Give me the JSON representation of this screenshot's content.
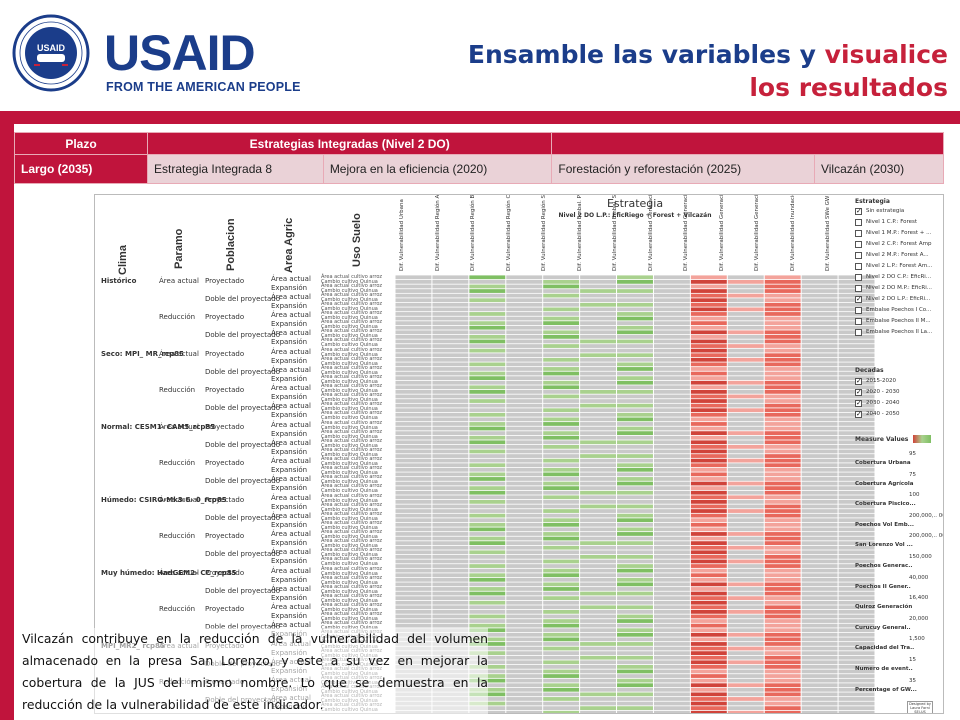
{
  "logo": {
    "wordmark": "USAID",
    "tagline": "FROM THE AMERICAN PEOPLE",
    "seal_text": "UNITED STATES AGENCY INTERNATIONAL DEVELOPMENT",
    "seal_center": "USAID"
  },
  "title": {
    "part1": "Ensamble las variables y ",
    "part2": "visualice",
    "part3": "los resultados"
  },
  "table": {
    "headers": [
      "Plazo",
      "Estrategias Integradas (Nivel 2 DO)",
      ""
    ],
    "row": [
      "Largo (2035)",
      "Estrategia Integrada 8",
      "Mejora en la eficiencia (2020)",
      "Forestación y reforestación (2025)",
      "Vilcazán (2030)"
    ]
  },
  "viz": {
    "title": "Estrategia",
    "subtitle": "Nivel 2 DO L.P.: EficRiego + Forest + Vilcazán",
    "col_headers": [
      "Clima",
      "Paramo",
      "Poblacion",
      "Area Agric",
      "Uso Suelo"
    ],
    "value_headers": [
      "Dif. Vulnerabilidad Urbana",
      "Dif. Vulnerabilidad Región Alto Piura",
      "Dif. Vulnerabilidad Región Bajo Piura",
      "Dif. Vulnerabilidad Región Chira",
      "Dif. Vulnerabilidad Región San Lorenzo",
      "Dif. Vulnerabilidad Embal. Poechos",
      "Dif. Vulnerabilidad Embal. San Lorenzo",
      "Dif. Vulnerabilidad Generación Poechos",
      "Dif. Vulnerabilidad Generación Poechos II",
      "Dif. Vulnerabilidad Generación Quiroz",
      "Dif. Vulnerabilidad Generación Curumuy",
      "Dif. Vulnerabilidad Inundación en Piura",
      "Dif. Vulnerabilidad SWe GW"
    ],
    "clima": [
      "Histórico",
      "Seco: MPI_ MR_rcp85",
      "Normal: CESM1- CAM5_rcp85",
      "Húmedo: CSIRO-Mk3-6- 0_rcp85",
      "Muy húmedo: HadGEM2- CC_rcp85",
      "MPI_MR2_ rcp85"
    ],
    "paramo": [
      "Área actual",
      "Reducción"
    ],
    "poblacion": [
      "Proyectado",
      "Doble del proyectado"
    ],
    "area_agric": [
      "Área actual",
      "Expansión"
    ],
    "uso_suelo": [
      "Área actual cultivo arroz",
      "Cambio cultivo Quinua"
    ],
    "legend": {
      "estrategia_title": "Estrategia",
      "estrategia_items": [
        {
          "label": "Sin estrategia",
          "checked": true
        },
        {
          "label": "Nivel 1 C.P.: Forest",
          "checked": false
        },
        {
          "label": "Nivel 1 M.P.: Forest + ...",
          "checked": false
        },
        {
          "label": "Nivel 2 C.P.: Forest Amp",
          "checked": false
        },
        {
          "label": "Nivel 2 M.P.: Forest A...",
          "checked": false
        },
        {
          "label": "Nivel 2 L.P.: Forest Am...",
          "checked": false
        },
        {
          "label": "Nivel 2 DO C.P.: EficRi...",
          "checked": false
        },
        {
          "label": "Nivel 2 DO M.P.: EficRi...",
          "checked": false
        },
        {
          "label": "Nivel 2 DO L.P.: EficRi...",
          "checked": true
        },
        {
          "label": "Embalse Poechos I Co...",
          "checked": false
        },
        {
          "label": "Embalse Poechos II M...",
          "checked": false
        },
        {
          "label": "Embalse Poechos II La...",
          "checked": false
        }
      ],
      "decadas_title": "Decadas",
      "decadas_items": [
        {
          "label": "2015-2020",
          "checked": true
        },
        {
          "label": "2020 - 2030",
          "checked": true
        },
        {
          "label": "2030 - 2040",
          "checked": true
        },
        {
          "label": "2040 - 2050",
          "checked": true
        }
      ],
      "measure_title": "Measure Values",
      "measures": [
        {
          "label": "Cobertura Urbana",
          "value": "95"
        },
        {
          "label": "Cobertura Agrícola",
          "value": "75"
        },
        {
          "label": "Cobertura Piscico...",
          "value": "100"
        },
        {
          "label": "Poechos Vol Emb...",
          "value": "200,000,.. 000"
        },
        {
          "label": "San Lorenzo Vol ...",
          "value": "200,000,.. 000"
        },
        {
          "label": "Poechos Generac..",
          "value": "150,000"
        },
        {
          "label": "Poechos II Gener..",
          "value": "40,000"
        },
        {
          "label": "Quiroz Generación",
          "value": "16,400"
        },
        {
          "label": "Curucuy General..",
          "value": "20,000"
        },
        {
          "label": "Capacidad del Tra..",
          "value": "1,500"
        },
        {
          "label": "Numero de event..",
          "value": "15"
        },
        {
          "label": "Percentage of GW...",
          "value": "35"
        }
      ],
      "footer": "Designed by Laura Forni SEI-US"
    },
    "colors": {
      "gray": "#c9c9c9",
      "light_green": "#a9d18e",
      "green": "#7fbf63",
      "light_red": "#f3a39b",
      "red": "#e8685c",
      "dark_red": "#d0433a"
    }
  },
  "caption": "Vilcazán contribuye en la reducción de la vulnerabilidad del volumen almacenado en la presa San Lorenzo, y este a su vez en mejorar la cobertura de la JUS del mismo nombre. Lo que se demuestra en la reducción de la vulnerabilidad de este indicador."
}
